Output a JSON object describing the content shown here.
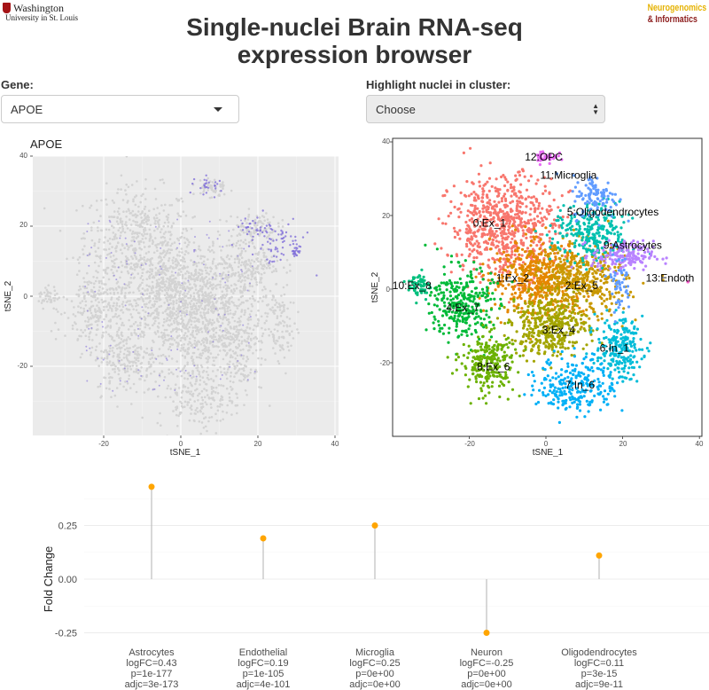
{
  "logos": {
    "university_line1": "Washington",
    "university_line2": "University in St. Louis",
    "lab_line1": "Neurogenomics",
    "lab_line2": "& Informatics"
  },
  "header": {
    "title_line1": "Single-nuclei Brain RNA-seq",
    "title_line2": "expression browser"
  },
  "controls": {
    "gene_label": "Gene:",
    "gene_value": "APOE",
    "cluster_label": "Highlight nuclei in cluster:",
    "cluster_value": "Choose"
  },
  "tsne_left": {
    "title": "APOE",
    "xlabel": "tSNE_1",
    "ylabel": "tSNE_2",
    "xticks": [
      "-20",
      "0",
      "20",
      "40"
    ],
    "yticks": [
      "40",
      "20",
      "0",
      "-20"
    ]
  },
  "tsne_right": {
    "xlabel": "tSNE_1",
    "ylabel": "tSNE_2",
    "xticks": [
      "-20",
      "0",
      "20",
      "40"
    ],
    "yticks": [
      "40",
      "20",
      "0",
      "-20"
    ],
    "clusters": [
      {
        "label": "0:Ex_1",
        "color": "#f8766d"
      },
      {
        "label": "1:Ex_2",
        "color": "#e58700"
      },
      {
        "label": "2:Ex_5",
        "color": "#a3a500"
      },
      {
        "label": "3:Ex_4",
        "color": "#c99800"
      },
      {
        "label": "4:Ex_7",
        "color": "#00ba38"
      },
      {
        "label": "5:Oligodendrocytes",
        "color": "#00c0af"
      },
      {
        "label": "6:In_1",
        "color": "#00bcd8"
      },
      {
        "label": "7:In_6",
        "color": "#00b0f6"
      },
      {
        "label": "8:Ex_6",
        "color": "#6bb100"
      },
      {
        "label": "9:Astrocytes",
        "color": "#b983ff"
      },
      {
        "label": "10:Ex_8",
        "color": "#00bf7d"
      },
      {
        "label": "11:Microglia",
        "color": "#619cff"
      },
      {
        "label": "12:OPC",
        "color": "#e76bf3"
      },
      {
        "label": "13:Endoth",
        "color": "#fd61d1"
      }
    ]
  },
  "chart_data": {
    "type": "lollipop",
    "title": "",
    "xlabel": "",
    "ylabel": "Fold Change",
    "ylim": [
      -0.28,
      0.47
    ],
    "yticks": [
      "0.25",
      "0.00",
      "-0.25"
    ],
    "categories": [
      "Astrocytes",
      "Endothelial",
      "Microglia",
      "Neuron",
      "Oligodendrocytes"
    ],
    "values": [
      0.43,
      0.19,
      0.25,
      -0.25,
      0.11
    ],
    "logfc_labels": [
      "logFC=0.43",
      "logFC=0.19",
      "logFC=0.25",
      "logFC=-0.25",
      "logFC=0.11"
    ],
    "p_labels": [
      "p=1e-177",
      "p=1e-105",
      "p=0e+00",
      "p=0e+00",
      "p=3e-15"
    ],
    "adj_labels": [
      "adjc=3e-173",
      "adjc=4e-101",
      "adjc=0e+00",
      "adjc=0e+00",
      "adjc=9e-11"
    ],
    "point_color": "#ffa500",
    "stem_color": "#bdbdbd"
  }
}
